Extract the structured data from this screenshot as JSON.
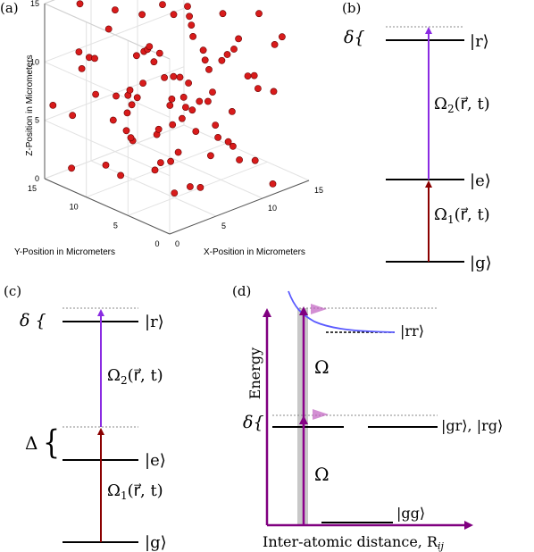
{
  "figure": {
    "panels": {
      "a": {
        "label": "(a)"
      },
      "b": {
        "label": "(b)"
      },
      "c": {
        "label": "(c)"
      },
      "d": {
        "label": "(d)"
      }
    }
  },
  "chart_data": {
    "type": "scatter",
    "dimension": "3d",
    "xlabel": "X-Position in Micrometers",
    "ylabel": "Y-Position in Micrometers",
    "zlabel": "Z-Position in Micrometers",
    "xlim": [
      0,
      15
    ],
    "ylim": [
      0,
      15
    ],
    "zlim": [
      0,
      15
    ],
    "xticks": [
      "0",
      "5",
      "10",
      "15"
    ],
    "yticks": [
      "0",
      "5",
      "10",
      "15"
    ],
    "zticks": [
      "0",
      "5",
      "10",
      "15"
    ],
    "grid": true,
    "point_color": "#d81b1b",
    "points": [
      [
        2,
        13,
        15
      ],
      [
        4,
        11,
        14.5
      ],
      [
        6,
        10,
        13.8
      ],
      [
        9,
        12,
        15
      ],
      [
        11,
        13,
        14.3
      ],
      [
        13,
        12,
        14.5
      ],
      [
        1,
        3,
        13.5
      ],
      [
        3,
        6,
        13
      ],
      [
        7,
        5,
        13.2
      ],
      [
        10,
        9,
        13.6
      ],
      [
        12,
        7,
        13
      ],
      [
        14,
        10,
        13.3
      ],
      [
        0,
        9,
        12.2
      ],
      [
        2,
        1,
        12.5
      ],
      [
        5,
        8,
        12
      ],
      [
        8,
        2,
        12.3
      ],
      [
        11,
        4,
        12.1
      ],
      [
        13,
        1,
        12.6
      ],
      [
        15,
        6,
        12.4
      ],
      [
        1,
        12,
        11.5
      ],
      [
        4,
        4,
        11
      ],
      [
        6,
        14,
        11.3
      ],
      [
        9,
        6,
        11.1
      ],
      [
        12,
        11,
        11.5
      ],
      [
        14,
        3,
        11
      ],
      [
        0,
        5,
        10.3
      ],
      [
        3,
        13,
        10.1
      ],
      [
        7,
        9,
        10.5
      ],
      [
        10,
        1,
        10.2
      ],
      [
        13,
        14,
        10.4
      ],
      [
        2,
        7,
        9.5
      ],
      [
        5,
        2,
        9.2
      ],
      [
        8,
        12,
        9.4
      ],
      [
        11,
        8,
        9
      ],
      [
        14,
        13,
        9.5
      ],
      [
        1,
        10,
        8.5
      ],
      [
        4,
        15,
        8.2
      ],
      [
        6,
        5,
        8.3
      ],
      [
        9,
        14,
        8.1
      ],
      [
        12,
        4,
        8.6
      ],
      [
        15,
        9,
        8.4
      ],
      [
        3,
        3,
        7.5
      ],
      [
        7,
        11,
        7.3
      ],
      [
        10,
        6,
        7.2
      ],
      [
        13,
        2,
        7.6
      ],
      [
        0,
        14,
        6.6
      ],
      [
        2,
        9,
        6.3
      ],
      [
        5,
        12,
        6.5
      ],
      [
        8,
        7,
        6.2
      ],
      [
        11,
        10,
        6.4
      ],
      [
        14,
        5,
        6.6
      ],
      [
        1,
        1,
        5.6
      ],
      [
        4,
        6,
        5.4
      ],
      [
        7,
        2,
        5.5
      ],
      [
        9,
        10,
        5.1
      ],
      [
        12,
        14,
        5.3
      ],
      [
        15,
        12,
        5.7
      ],
      [
        3,
        15,
        4.5
      ],
      [
        6,
        8,
        4.6
      ],
      [
        9,
        3,
        4.2
      ],
      [
        11,
        12,
        4.4
      ],
      [
        13,
        7,
        4.3
      ],
      [
        2,
        4,
        3.6
      ],
      [
        5,
        10,
        3.3
      ],
      [
        8,
        14,
        3.5
      ],
      [
        10,
        8,
        3.2
      ],
      [
        14,
        11,
        3.6
      ],
      [
        1,
        7,
        2.5
      ],
      [
        4,
        2,
        2.2
      ],
      [
        7,
        13,
        2.6
      ],
      [
        11,
        2,
        2.3
      ],
      [
        13,
        9,
        2.5
      ],
      [
        3,
        11,
        1.5
      ],
      [
        6,
        3,
        1.2
      ],
      [
        9,
        9,
        1.4
      ],
      [
        12,
        5,
        1.1
      ],
      [
        15,
        14,
        1.6
      ],
      [
        2,
        14,
        0.6
      ],
      [
        5,
        5,
        0.4
      ],
      [
        8,
        10,
        0.5
      ],
      [
        12,
        1,
        0.3
      ],
      [
        14,
        8,
        0.7
      ],
      [
        6,
        13,
        14.5
      ],
      [
        10,
        12,
        12.8
      ],
      [
        4,
        9,
        7
      ],
      [
        8,
        4,
        3
      ],
      [
        13,
        13,
        1.8
      ],
      [
        1,
        5,
        9.8
      ],
      [
        11,
        6,
        9.6
      ],
      [
        3,
        8,
        4.8
      ]
    ]
  },
  "panel_b": {
    "delta": "δ{",
    "ket_r": "|r⟩",
    "ket_e": "|e⟩",
    "ket_g": "|g⟩",
    "omega2": "Ω",
    "omega2_sub": "2",
    "omega2_arg": "(r⃗, t)",
    "omega1": "Ω",
    "omega1_sub": "1",
    "omega1_arg": "(r⃗, t)",
    "colors": {
      "red_arrow": "#8b0000",
      "purple_arrow": "#8a2be2"
    }
  },
  "panel_c": {
    "delta": "δ {",
    "Delta": "Δ",
    "brace": "{",
    "ket_r": "|r⟩",
    "ket_e": "|e⟩",
    "ket_g": "|g⟩",
    "omega2": "Ω",
    "omega2_sub": "2",
    "omega2_arg": "(r⃗, t)",
    "omega1": "Ω",
    "omega1_sub": "1",
    "omega1_arg": "(r⃗, t)"
  },
  "panel_d": {
    "ylabel": "Energy",
    "xlabel": "Inter-atomic distance, R",
    "xlabel_sub": "ij",
    "delta": "δ{",
    "ket_rr": "|rr⟩",
    "ket_gr_rg": "|gr⟩, |rg⟩",
    "ket_gg": "|gg⟩",
    "omega_upper": "Ω",
    "omega_lower": "Ω",
    "colors": {
      "axis": "#800080",
      "curve": "#5a5aff",
      "blockade": "#c8c8c8",
      "pulse": "#c060c0"
    }
  }
}
